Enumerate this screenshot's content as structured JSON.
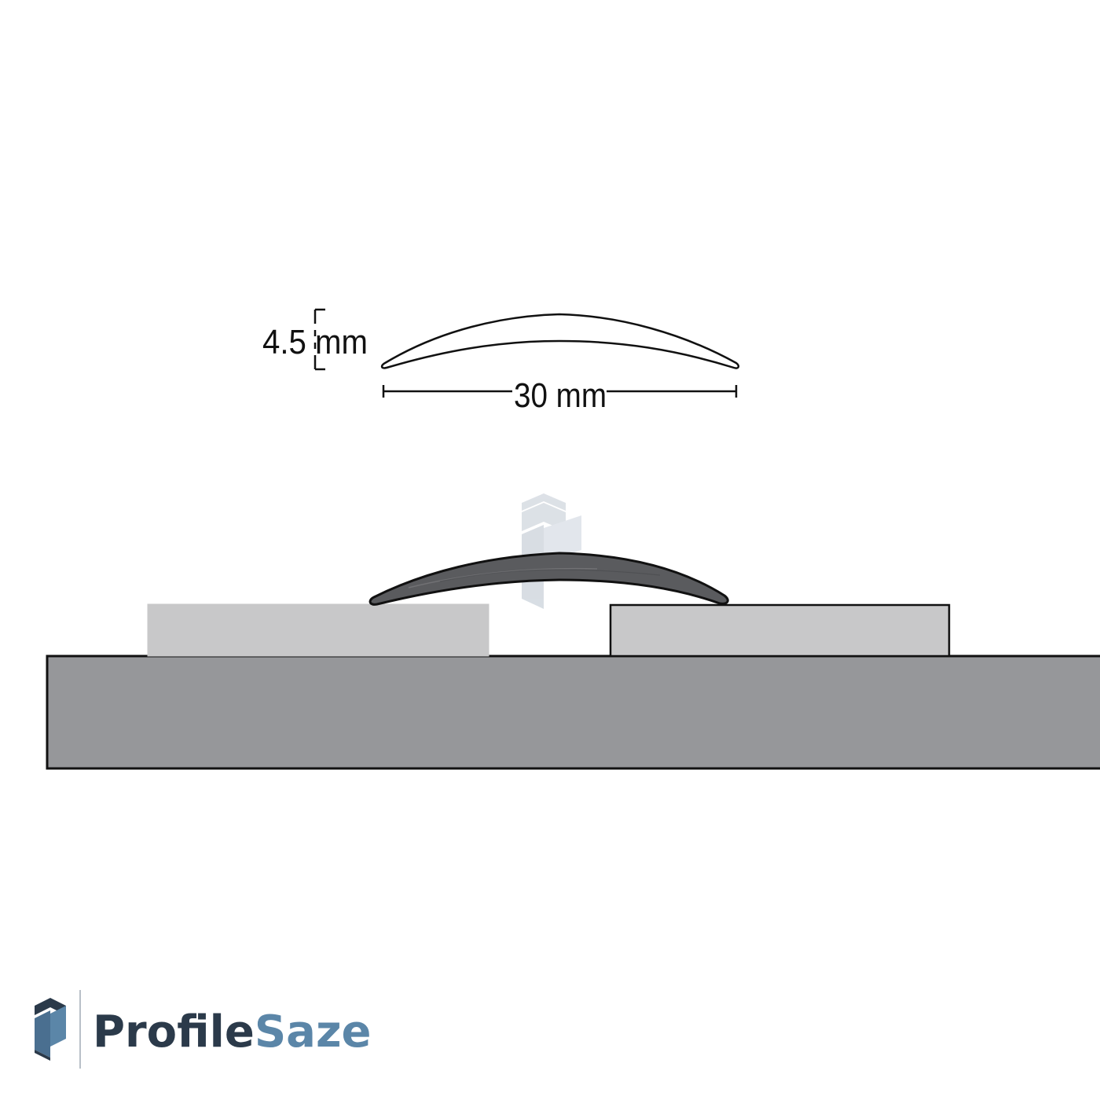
{
  "dimensions": {
    "height_label": "4.5 mm",
    "width_label": "30 mm"
  },
  "brand": {
    "name_part1": "Profile",
    "name_part2": "Saze",
    "icon": "profilesaze-logo-icon"
  },
  "colors": {
    "outline": "#111111",
    "floor_base": "#96979a",
    "floor_tile": "#c8c8c9",
    "profile_strip": "#5a5b5e",
    "brand_dark": "#2b3a4a",
    "brand_light": "#5b86a8",
    "watermark": "#d9dee4"
  }
}
